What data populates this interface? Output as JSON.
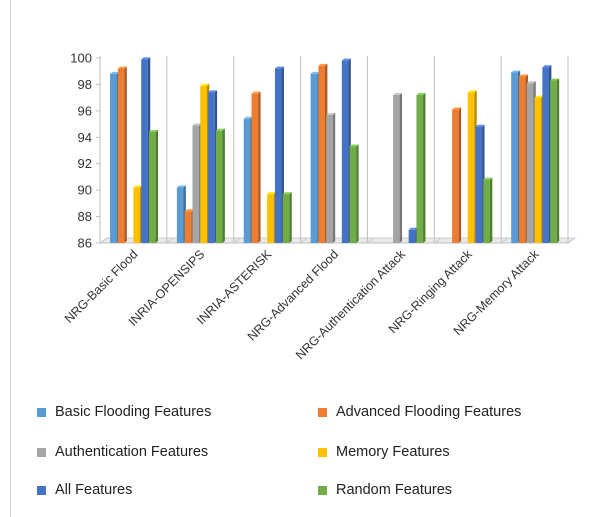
{
  "chart_data": {
    "type": "bar",
    "title": "",
    "xlabel": "",
    "ylabel": "",
    "ylim": [
      86,
      100
    ],
    "yticks": [
      86,
      88,
      90,
      92,
      94,
      96,
      98,
      100
    ],
    "grid": "vertical-category-separators",
    "legend_position": "bottom",
    "categories": [
      "NRG-Basic Flood",
      "INRIA-OPENSIPS",
      "INRIA-ASTERISK",
      "NRG-Advanced Flood",
      "NRG-Authentication Attack",
      "NRG-Ringing Attack",
      "NRG-Memory Attack"
    ],
    "series": [
      {
        "name": "Basic Flooding Features",
        "color": "#5b9bd5",
        "values": [
          98.8,
          90.2,
          95.4,
          98.8,
          86.0,
          86.0,
          98.9
        ]
      },
      {
        "name": "Advanced Flooding Features",
        "color": "#ed7d31",
        "values": [
          99.2,
          88.4,
          97.3,
          99.4,
          86.0,
          96.1,
          98.6
        ]
      },
      {
        "name": "Authentication Features",
        "color": "#a5a5a5",
        "values": [
          86.0,
          94.9,
          86.0,
          95.7,
          97.2,
          86.0,
          98.1
        ]
      },
      {
        "name": "Memory Features",
        "color": "#ffc000",
        "values": [
          90.2,
          97.9,
          89.7,
          86.0,
          86.0,
          97.4,
          97.0
        ]
      },
      {
        "name": "All Features",
        "color": "#4472c4",
        "values": [
          99.9,
          97.4,
          99.2,
          99.8,
          87.0,
          94.8,
          99.3
        ]
      },
      {
        "name": "Random Features",
        "color": "#70ad47",
        "values": [
          94.4,
          94.5,
          89.7,
          93.3,
          97.2,
          90.8,
          98.3
        ]
      }
    ]
  }
}
